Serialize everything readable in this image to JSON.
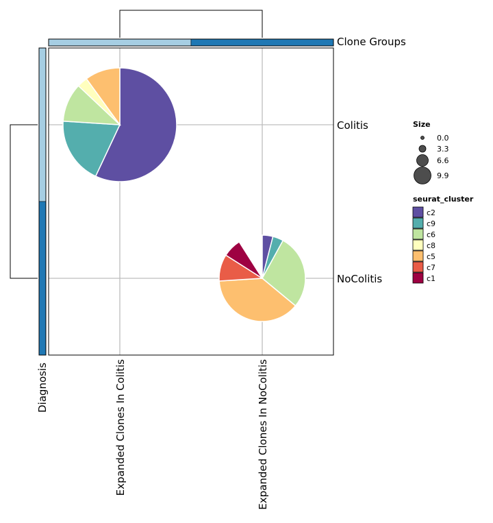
{
  "chart_data": {
    "type": "pie",
    "title": "",
    "columns": [
      "Expanded Clones In Colitis",
      "Expanded Clones In NoColitis"
    ],
    "rows": [
      "Colitis",
      "NoColitis"
    ],
    "top_annotation": {
      "label": "Clone Groups",
      "colors": [
        "#a6cee3",
        "#1f78b4"
      ]
    },
    "left_annotation": {
      "label": "Diagnosis",
      "colors": [
        "#a6cee3",
        "#1f78b4"
      ]
    },
    "clusters": [
      {
        "name": "c2",
        "color": "#5e4fa2"
      },
      {
        "name": "c9",
        "color": "#54aead"
      },
      {
        "name": "c6",
        "color": "#bfe5a0"
      },
      {
        "name": "c8",
        "color": "#ffffbe"
      },
      {
        "name": "c5",
        "color": "#fdbf6f"
      },
      {
        "name": "c7",
        "color": "#e95c47"
      },
      {
        "name": "c1",
        "color": "#9e0142"
      }
    ],
    "pies": [
      {
        "row": "Colitis",
        "column": "Expanded Clones In Colitis",
        "size": 9.9,
        "fractions": {
          "c2": 0.57,
          "c9": 0.19,
          "c6": 0.11,
          "c8": 0.03,
          "c5": 0.1,
          "c7": 0.0,
          "c1": 0.0
        }
      },
      {
        "row": "NoColitis",
        "column": "Expanded Clones In NoColitis",
        "size": 5.7,
        "fractions": {
          "c2": 0.04,
          "c9": 0.04,
          "c6": 0.28,
          "c8": 0.0,
          "c5": 0.38,
          "c7": 0.1,
          "c1": 0.07
        }
      }
    ],
    "size_legend": {
      "title": "Size",
      "values": [
        0.0,
        3.3,
        6.6,
        9.9
      ],
      "labels": [
        "0.0",
        "3.3",
        "6.6",
        "9.9"
      ]
    },
    "color_legend_title": "seurat_cluster"
  }
}
